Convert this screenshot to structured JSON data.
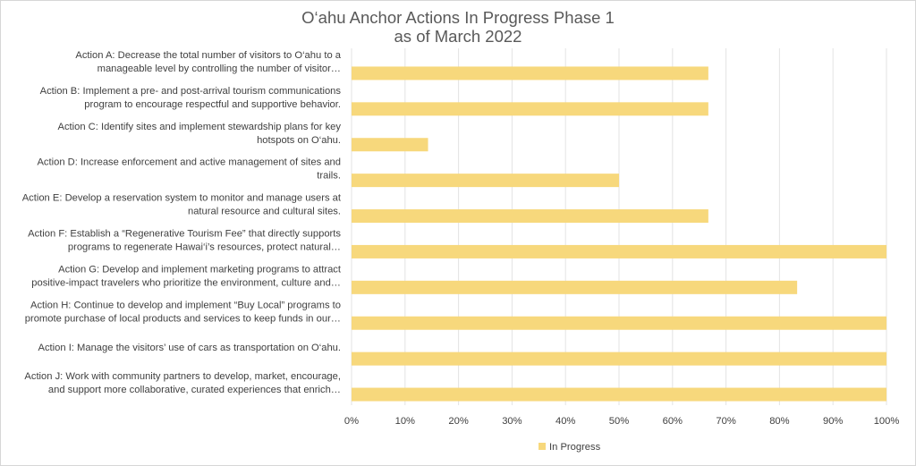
{
  "chart_data": {
    "type": "bar",
    "orientation": "horizontal",
    "title_lines": [
      "O‘ahu Anchor Actions In Progress Phase 1",
      "as of March 2022"
    ],
    "categories": [
      [
        "Action A: Decrease the total number of visitors to O‘ahu to a",
        "manageable level by controlling the number of visitor…"
      ],
      [
        "Action B: Implement a pre- and post-arrival tourism communications",
        "program to encourage respectful and supportive behavior."
      ],
      [
        "Action C: Identify sites and implement stewardship plans for key",
        "hotspots on O‘ahu."
      ],
      [
        "Action D: Increase enforcement and active management of sites and",
        "trails."
      ],
      [
        "Action E: Develop a reservation system to monitor and manage users at",
        "natural resource and cultural sites."
      ],
      [
        "Action F: Establish a “Regenerative Tourism Fee” that directly supports",
        "programs to regenerate Hawai‘i’s resources, protect natural…"
      ],
      [
        "Action G: Develop and implement marketing programs to attract",
        "positive-impact travelers who prioritize the environment, culture and…"
      ],
      [
        "Action H: Continue to develop and implement “Buy Local” programs to",
        "promote purchase of local products and services to keep funds in our…"
      ],
      [
        "Action I: Manage the visitors’ use of cars as transportation on O‘ahu."
      ],
      [
        "Action J: Work with community partners to develop, market, encourage,",
        "and support more collaborative, curated experiences that enrich…"
      ]
    ],
    "series": [
      {
        "name": "In Progress",
        "color": "#f7d87c",
        "values": [
          66.7,
          66.7,
          14.3,
          50,
          66.7,
          100,
          83.3,
          100,
          100,
          100
        ]
      }
    ],
    "xlim": [
      0,
      100
    ],
    "x_ticks": [
      "0%",
      "10%",
      "20%",
      "30%",
      "40%",
      "50%",
      "60%",
      "70%",
      "80%",
      "90%",
      "100%"
    ],
    "grid": true,
    "legend_position": "bottom"
  }
}
